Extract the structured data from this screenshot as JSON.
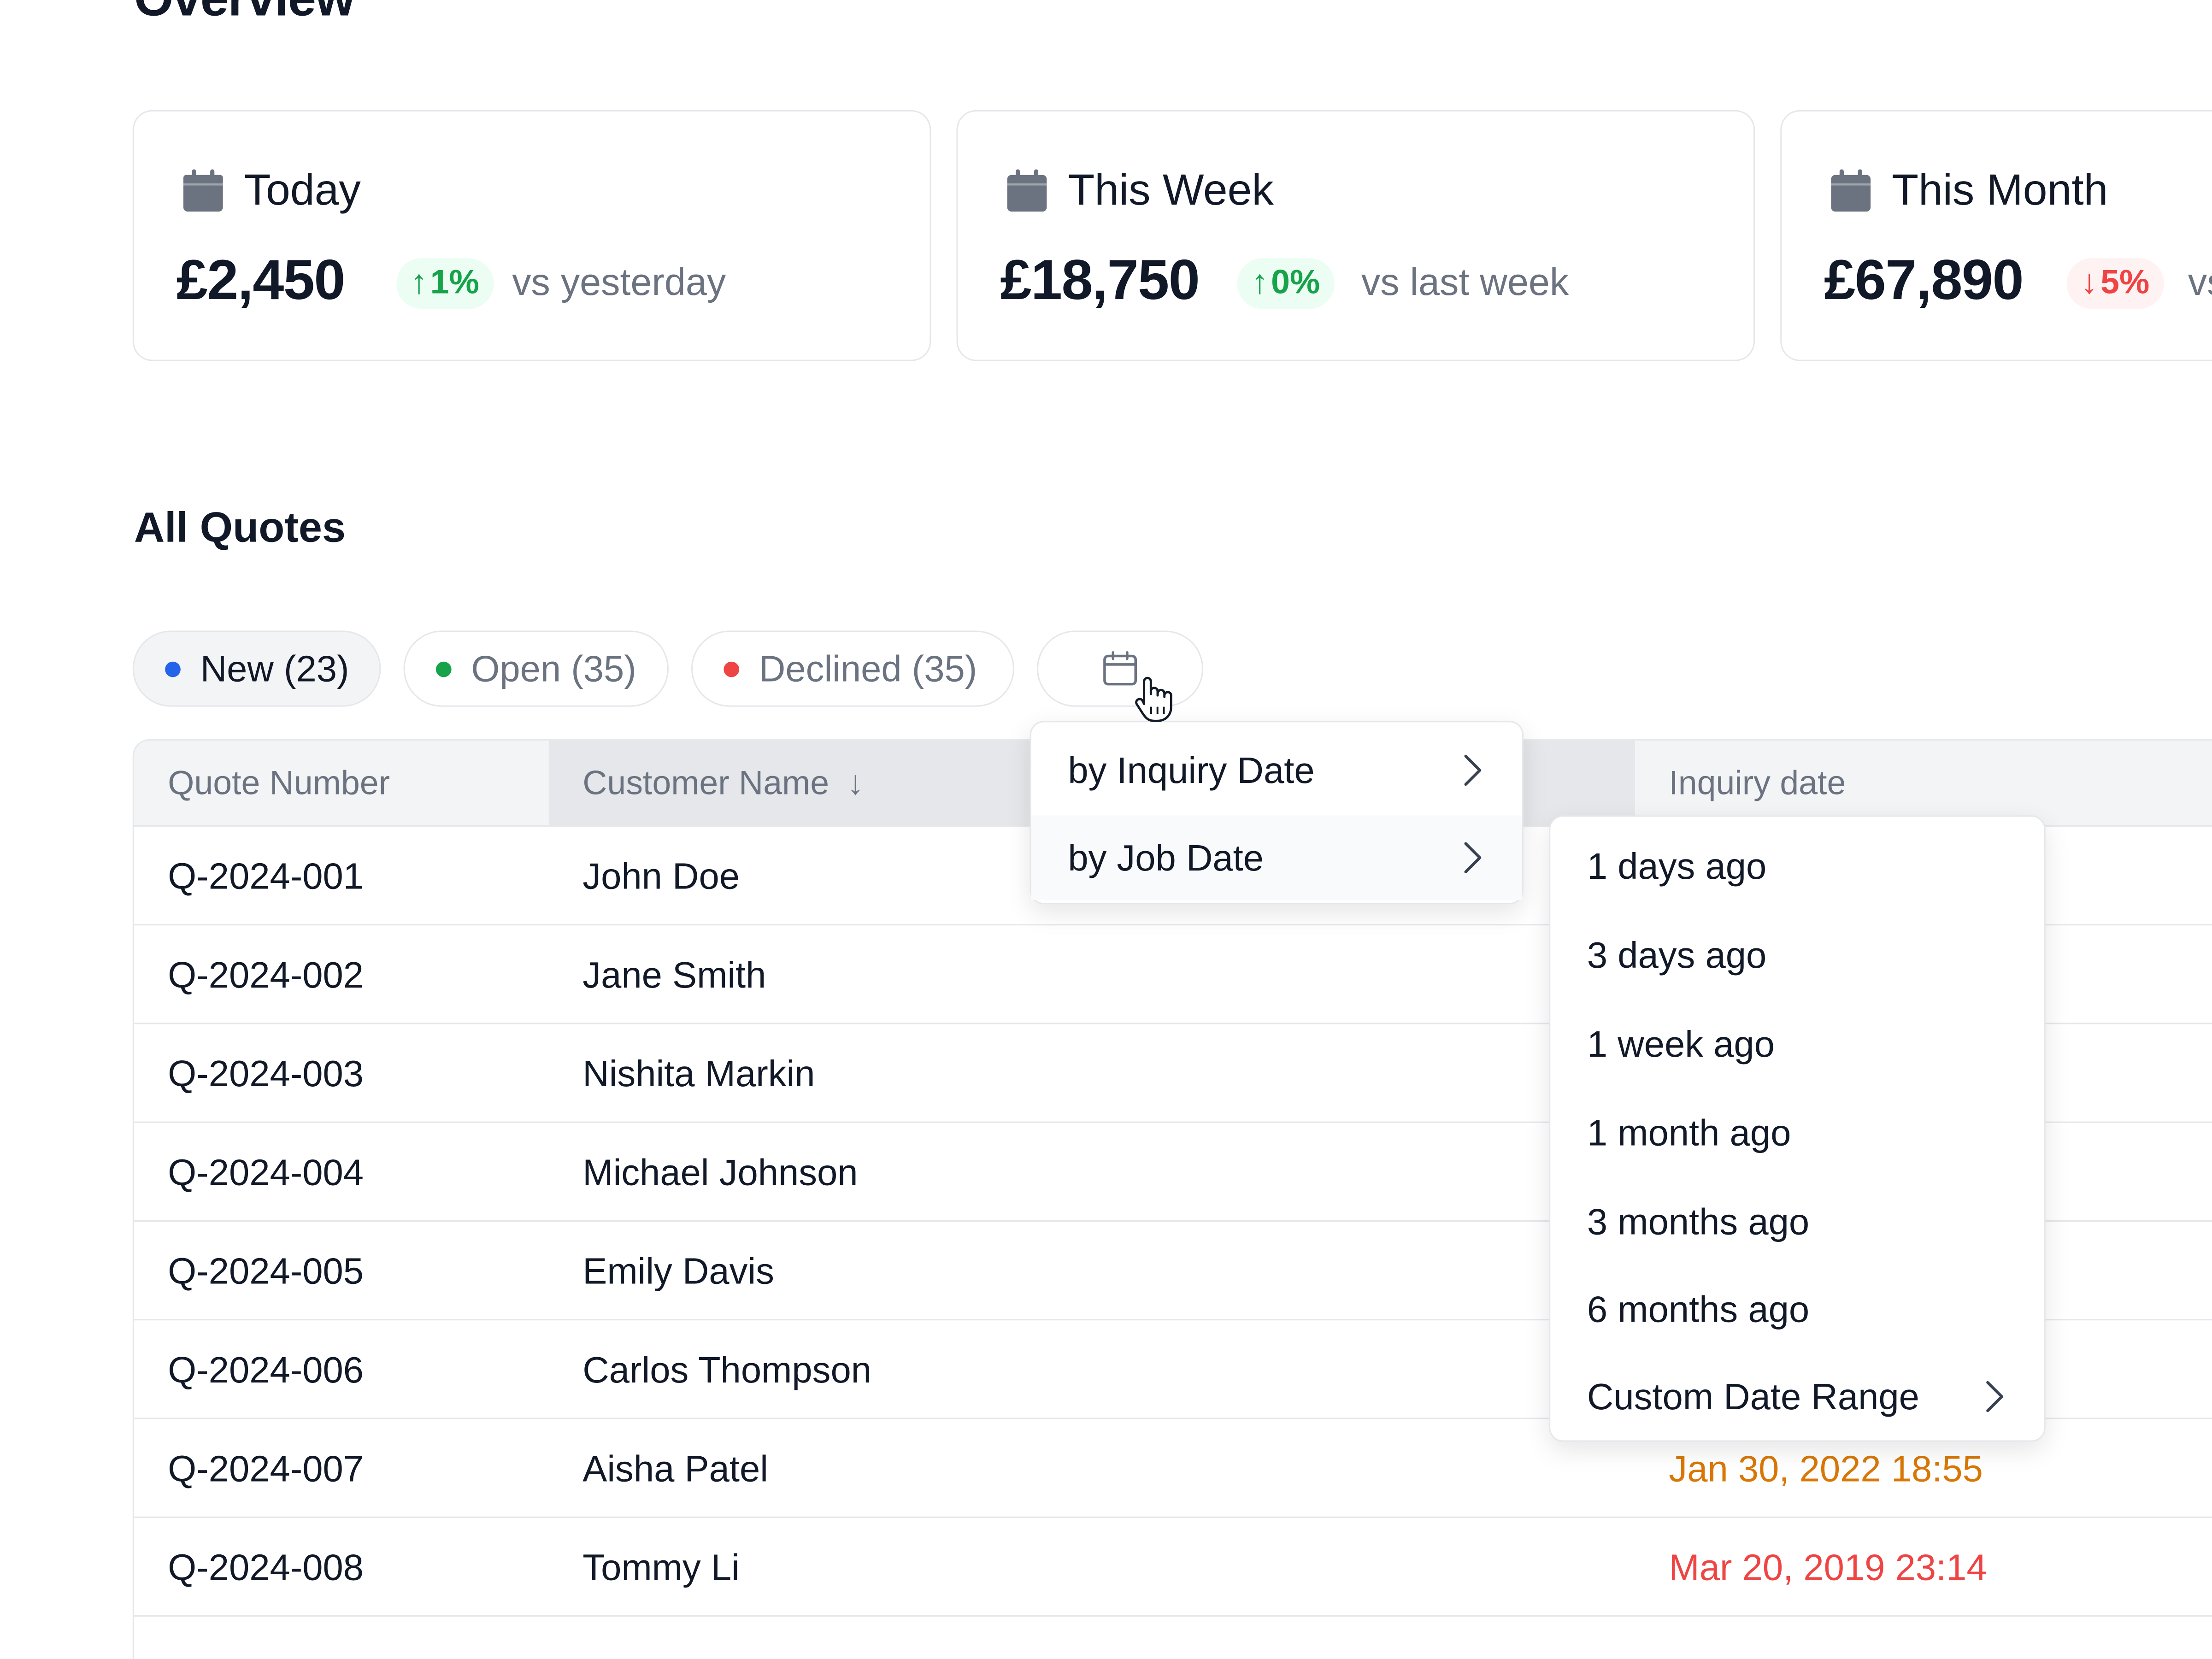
{
  "overview": {
    "title": "Overview"
  },
  "cards": [
    {
      "label": "Today",
      "amount": "£2,450",
      "delta": "1%",
      "direction": "up",
      "compare": "vs yesterday"
    },
    {
      "label": "This Week",
      "amount": "£18,750",
      "delta": "0%",
      "direction": "up",
      "compare": "vs last week"
    },
    {
      "label": "This Month",
      "amount": "£67,890",
      "delta": "5%",
      "direction": "down",
      "compare": "vs last month"
    }
  ],
  "quotes": {
    "title": "All Quotes",
    "filters": [
      {
        "label": "New (23)",
        "color": "#2563eb",
        "active": true
      },
      {
        "label": "Open (35)",
        "color": "#16a34a",
        "active": false
      },
      {
        "label": "Declined (35)",
        "color": "#ef4444",
        "active": false
      }
    ],
    "date_filter_icon": "calendar-icon"
  },
  "table": {
    "headers": {
      "quote_number": "Quote Number",
      "customer_name": "Customer Name",
      "inquiry_date": "Inquiry date"
    },
    "sort_icon": "arrow-down-icon",
    "rows": [
      {
        "quote": "Q-2024-001",
        "customer": "John Doe",
        "date": "",
        "date_color": ""
      },
      {
        "quote": "Q-2024-002",
        "customer": "Jane Smith",
        "date": "",
        "date_color": ""
      },
      {
        "quote": "Q-2024-003",
        "customer": "Nishita Markin",
        "date": "",
        "date_color": ""
      },
      {
        "quote": "Q-2024-004",
        "customer": "Michael Johnson",
        "date": "",
        "date_color": ""
      },
      {
        "quote": "Q-2024-005",
        "customer": "Emily Davis",
        "date": "",
        "date_color": ""
      },
      {
        "quote": "Q-2024-006",
        "customer": "Carlos Thompson",
        "date": "",
        "date_color": ""
      },
      {
        "quote": "Q-2024-007",
        "customer": "Aisha Patel",
        "date": "Jan 30, 2022 18:55",
        "date_color": "#d97706"
      },
      {
        "quote": "Q-2024-008",
        "customer": "Tommy Li",
        "date": "Mar 20, 2019 23:14",
        "date_color": "#ef4444"
      }
    ]
  },
  "date_menu": {
    "items": [
      {
        "label": "by Inquiry Date"
      },
      {
        "label": "by Job Date"
      }
    ]
  },
  "sub_menu": {
    "items": [
      {
        "label": "1 days ago"
      },
      {
        "label": "3 days ago"
      },
      {
        "label": "1 week ago"
      },
      {
        "label": "1 month ago"
      },
      {
        "label": "3 months ago"
      },
      {
        "label": "6 months ago"
      },
      {
        "label": "Custom Date Range"
      }
    ]
  }
}
